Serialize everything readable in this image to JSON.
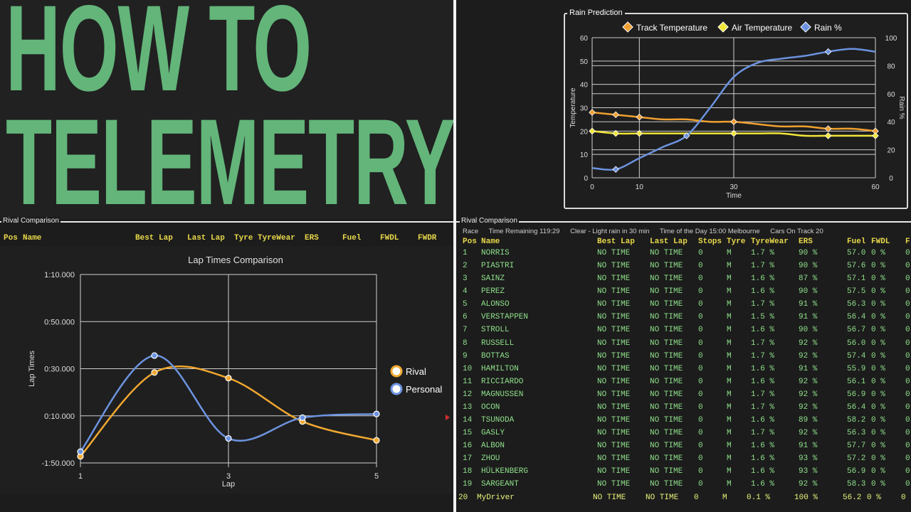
{
  "title_lines": [
    "HOW TO",
    "TELEMETRY"
  ],
  "left_section_label": "Rival Comparison",
  "right_section_label": "Rival Comparison",
  "left_headers": [
    "Pos",
    "Name",
    "Best Lap",
    "Last Lap",
    "Tyre",
    "TyreWear",
    "ERS",
    "Fuel",
    "FWDL",
    "FWDR"
  ],
  "right_headers": [
    "Pos",
    "Name",
    "Best Lap",
    "Last Lap",
    "Stops",
    "Tyre",
    "TyreWear",
    "ERS",
    "Fuel",
    "FWDL",
    "F"
  ],
  "info_bar": {
    "race": "Race",
    "time_remaining": "Time Remaining 119:29",
    "weather": "Clear - Light rain in 30 min",
    "time_of_day": "Time of the Day 15:00 Melbourne",
    "cars_on_track": "Cars On Track 20"
  },
  "drivers": [
    {
      "pos": "1",
      "name": "NORRIS",
      "best": "NO TIME",
      "last": "NO TIME",
      "stops": "0",
      "tyre": "M",
      "wear": "1.7 %",
      "ers": "90 %",
      "fuel": "57.0",
      "fwdl": "0 %",
      "fwdr": "0"
    },
    {
      "pos": "2",
      "name": "PIASTRI",
      "best": "NO TIME",
      "last": "NO TIME",
      "stops": "0",
      "tyre": "M",
      "wear": "1.7 %",
      "ers": "90 %",
      "fuel": "57.6",
      "fwdl": "0 %",
      "fwdr": "0"
    },
    {
      "pos": "3",
      "name": "SAINZ",
      "best": "NO TIME",
      "last": "NO TIME",
      "stops": "0",
      "tyre": "M",
      "wear": "1.6 %",
      "ers": "87 %",
      "fuel": "57.1",
      "fwdl": "0 %",
      "fwdr": "0"
    },
    {
      "pos": "4",
      "name": "PEREZ",
      "best": "NO TIME",
      "last": "NO TIME",
      "stops": "0",
      "tyre": "M",
      "wear": "1.6 %",
      "ers": "90 %",
      "fuel": "57.5",
      "fwdl": "0 %",
      "fwdr": "0"
    },
    {
      "pos": "5",
      "name": "ALONSO",
      "best": "NO TIME",
      "last": "NO TIME",
      "stops": "0",
      "tyre": "M",
      "wear": "1.7 %",
      "ers": "91 %",
      "fuel": "56.3",
      "fwdl": "0 %",
      "fwdr": "0"
    },
    {
      "pos": "6",
      "name": "VERSTAPPEN",
      "best": "NO TIME",
      "last": "NO TIME",
      "stops": "0",
      "tyre": "M",
      "wear": "1.5 %",
      "ers": "91 %",
      "fuel": "56.4",
      "fwdl": "0 %",
      "fwdr": "0"
    },
    {
      "pos": "7",
      "name": "STROLL",
      "best": "NO TIME",
      "last": "NO TIME",
      "stops": "0",
      "tyre": "M",
      "wear": "1.6 %",
      "ers": "90 %",
      "fuel": "56.7",
      "fwdl": "0 %",
      "fwdr": "0"
    },
    {
      "pos": "8",
      "name": "RUSSELL",
      "best": "NO TIME",
      "last": "NO TIME",
      "stops": "0",
      "tyre": "M",
      "wear": "1.7 %",
      "ers": "92 %",
      "fuel": "56.0",
      "fwdl": "0 %",
      "fwdr": "0"
    },
    {
      "pos": "9",
      "name": "BOTTAS",
      "best": "NO TIME",
      "last": "NO TIME",
      "stops": "0",
      "tyre": "M",
      "wear": "1.7 %",
      "ers": "92 %",
      "fuel": "57.4",
      "fwdl": "0 %",
      "fwdr": "0"
    },
    {
      "pos": "10",
      "name": "HAMILTON",
      "best": "NO TIME",
      "last": "NO TIME",
      "stops": "0",
      "tyre": "M",
      "wear": "1.6 %",
      "ers": "91 %",
      "fuel": "55.9",
      "fwdl": "0 %",
      "fwdr": "0"
    },
    {
      "pos": "11",
      "name": "RICCIARDO",
      "best": "NO TIME",
      "last": "NO TIME",
      "stops": "0",
      "tyre": "M",
      "wear": "1.6 %",
      "ers": "92 %",
      "fuel": "56.1",
      "fwdl": "0 %",
      "fwdr": "0"
    },
    {
      "pos": "12",
      "name": "MAGNUSSEN",
      "best": "NO TIME",
      "last": "NO TIME",
      "stops": "0",
      "tyre": "M",
      "wear": "1.7 %",
      "ers": "92 %",
      "fuel": "56.9",
      "fwdl": "0 %",
      "fwdr": "0"
    },
    {
      "pos": "13",
      "name": "OCON",
      "best": "NO TIME",
      "last": "NO TIME",
      "stops": "0",
      "tyre": "M",
      "wear": "1.7 %",
      "ers": "92 %",
      "fuel": "56.4",
      "fwdl": "0 %",
      "fwdr": "0"
    },
    {
      "pos": "14",
      "name": "TSUNODA",
      "best": "NO TIME",
      "last": "NO TIME",
      "stops": "0",
      "tyre": "M",
      "wear": "1.6 %",
      "ers": "89 %",
      "fuel": "58.2",
      "fwdl": "0 %",
      "fwdr": "0"
    },
    {
      "pos": "15",
      "name": "GASLY",
      "best": "NO TIME",
      "last": "NO TIME",
      "stops": "0",
      "tyre": "M",
      "wear": "1.7 %",
      "ers": "92 %",
      "fuel": "56.3",
      "fwdl": "0 %",
      "fwdr": "0"
    },
    {
      "pos": "16",
      "name": "ALBON",
      "best": "NO TIME",
      "last": "NO TIME",
      "stops": "0",
      "tyre": "M",
      "wear": "1.6 %",
      "ers": "91 %",
      "fuel": "57.7",
      "fwdl": "0 %",
      "fwdr": "0"
    },
    {
      "pos": "17",
      "name": "ZHOU",
      "best": "NO TIME",
      "last": "NO TIME",
      "stops": "0",
      "tyre": "M",
      "wear": "1.6 %",
      "ers": "93 %",
      "fuel": "57.2",
      "fwdl": "0 %",
      "fwdr": "0"
    },
    {
      "pos": "18",
      "name": "HÜLKENBERG",
      "best": "NO TIME",
      "last": "NO TIME",
      "stops": "0",
      "tyre": "M",
      "wear": "1.6 %",
      "ers": "93 %",
      "fuel": "56.9",
      "fwdl": "0 %",
      "fwdr": "0"
    },
    {
      "pos": "19",
      "name": "SARGEANT",
      "best": "NO TIME",
      "last": "NO TIME",
      "stops": "0",
      "tyre": "M",
      "wear": "1.6 %",
      "ers": "92 %",
      "fuel": "58.3",
      "fwdl": "0 %",
      "fwdr": "0"
    }
  ],
  "my_driver": {
    "pos": "20",
    "name": "MyDriver",
    "best": "NO TIME",
    "last": "NO TIME",
    "stops": "0",
    "tyre": "M",
    "wear": "0.1 %",
    "ers": "100 %",
    "fuel": "56.2",
    "fwdl": "0 %",
    "fwdr": "0"
  },
  "colors": {
    "title_green": "#63b57a",
    "header_yellow": "#e8d84a",
    "row_green": "#8fe08a",
    "row_yellow": "#e9f27a",
    "track": "#f0a030",
    "air": "#f2e63a",
    "rain": "#6c93e0",
    "rival": "#f0a830",
    "personal": "#6c93e0"
  },
  "chart_data": [
    {
      "type": "line",
      "title": "Rain Prediction",
      "xlabel": "Time",
      "ylabel": "Temperature",
      "y2label": "Rain %",
      "xlim": [
        0,
        60
      ],
      "ylim": [
        0,
        60
      ],
      "y2lim": [
        0,
        100
      ],
      "xticks": [
        "0",
        "10",
        "30",
        "60"
      ],
      "xtick_values": [
        0,
        10,
        30,
        60
      ],
      "yticks": [
        "0",
        "10",
        "20",
        "30",
        "40",
        "50",
        "60"
      ],
      "y2ticks": [
        "0",
        "20",
        "40",
        "60",
        "80",
        "100"
      ],
      "legend_position": "top",
      "series": [
        {
          "name": "Track Temperature",
          "axis": "left",
          "x": [
            0,
            5,
            10,
            15,
            20,
            25,
            30,
            35,
            40,
            45,
            50,
            55,
            60
          ],
          "y": [
            28,
            27,
            26,
            25,
            25,
            24,
            24,
            23,
            22,
            22,
            21,
            21,
            20
          ],
          "markers_x": [
            0,
            5,
            10,
            30,
            50,
            60
          ]
        },
        {
          "name": "Air Temperature",
          "axis": "left",
          "x": [
            0,
            5,
            10,
            15,
            20,
            25,
            30,
            35,
            40,
            45,
            50,
            55,
            60
          ],
          "y": [
            20,
            19,
            19,
            19,
            19,
            19,
            19,
            19,
            19,
            18,
            18,
            18,
            18
          ],
          "markers_x": [
            0,
            5,
            10,
            30,
            50,
            60
          ]
        },
        {
          "name": "Rain %",
          "axis": "right",
          "x": [
            0,
            5,
            10,
            15,
            20,
            25,
            30,
            35,
            40,
            45,
            50,
            55,
            60
          ],
          "y": [
            7,
            6,
            14,
            22,
            30,
            50,
            72,
            82,
            85,
            87,
            90,
            92,
            90
          ],
          "markers_x": [
            5,
            20,
            50
          ]
        }
      ]
    },
    {
      "type": "line",
      "title": "Lap Times Comparison",
      "xlabel": "Lap",
      "ylabel": "Lap Times",
      "xlim": [
        1,
        5
      ],
      "xticks": [
        "1",
        "3",
        "5"
      ],
      "yticks": [
        "-1:50.000",
        "0:10.000",
        "0:30.000",
        "0:50.000",
        "1:10.000"
      ],
      "legend_position": "right",
      "series": [
        {
          "name": "Rival",
          "x": [
            1,
            2,
            3,
            4,
            5
          ],
          "y": [
            0.035,
            0.48,
            0.45,
            0.22,
            0.12
          ]
        },
        {
          "name": "Personal",
          "x": [
            1,
            2,
            3,
            4,
            5
          ],
          "y": [
            0.06,
            0.57,
            0.13,
            0.24,
            0.26
          ]
        }
      ]
    }
  ]
}
